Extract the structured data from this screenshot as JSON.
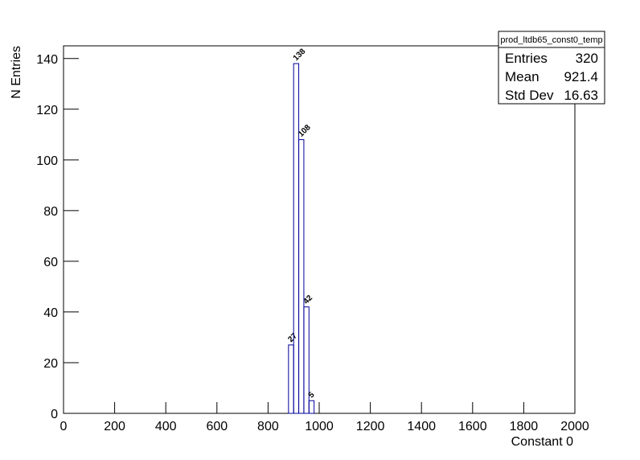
{
  "chart_data": {
    "type": "histogram",
    "x_label": "Constant 0",
    "y_label": "N Entries",
    "bins": [
      880,
      900,
      920,
      940,
      960,
      980
    ],
    "values": [
      27,
      138,
      108,
      42,
      5
    ],
    "color": "#000099",
    "xlim": [
      0,
      2000
    ],
    "xticks": [
      0,
      200,
      400,
      600,
      800,
      1000,
      1200,
      1400,
      1600,
      1800,
      2000
    ],
    "ylim": [
      0,
      145
    ],
    "yticks": [
      0,
      20,
      40,
      60,
      80,
      100,
      120,
      140
    ],
    "stats": {
      "title": "prod_ltdb65_const0_temp",
      "rows": [
        [
          "Entries",
          320
        ],
        [
          "Mean",
          921.4
        ],
        [
          "Std Dev",
          16.63
        ]
      ]
    }
  }
}
